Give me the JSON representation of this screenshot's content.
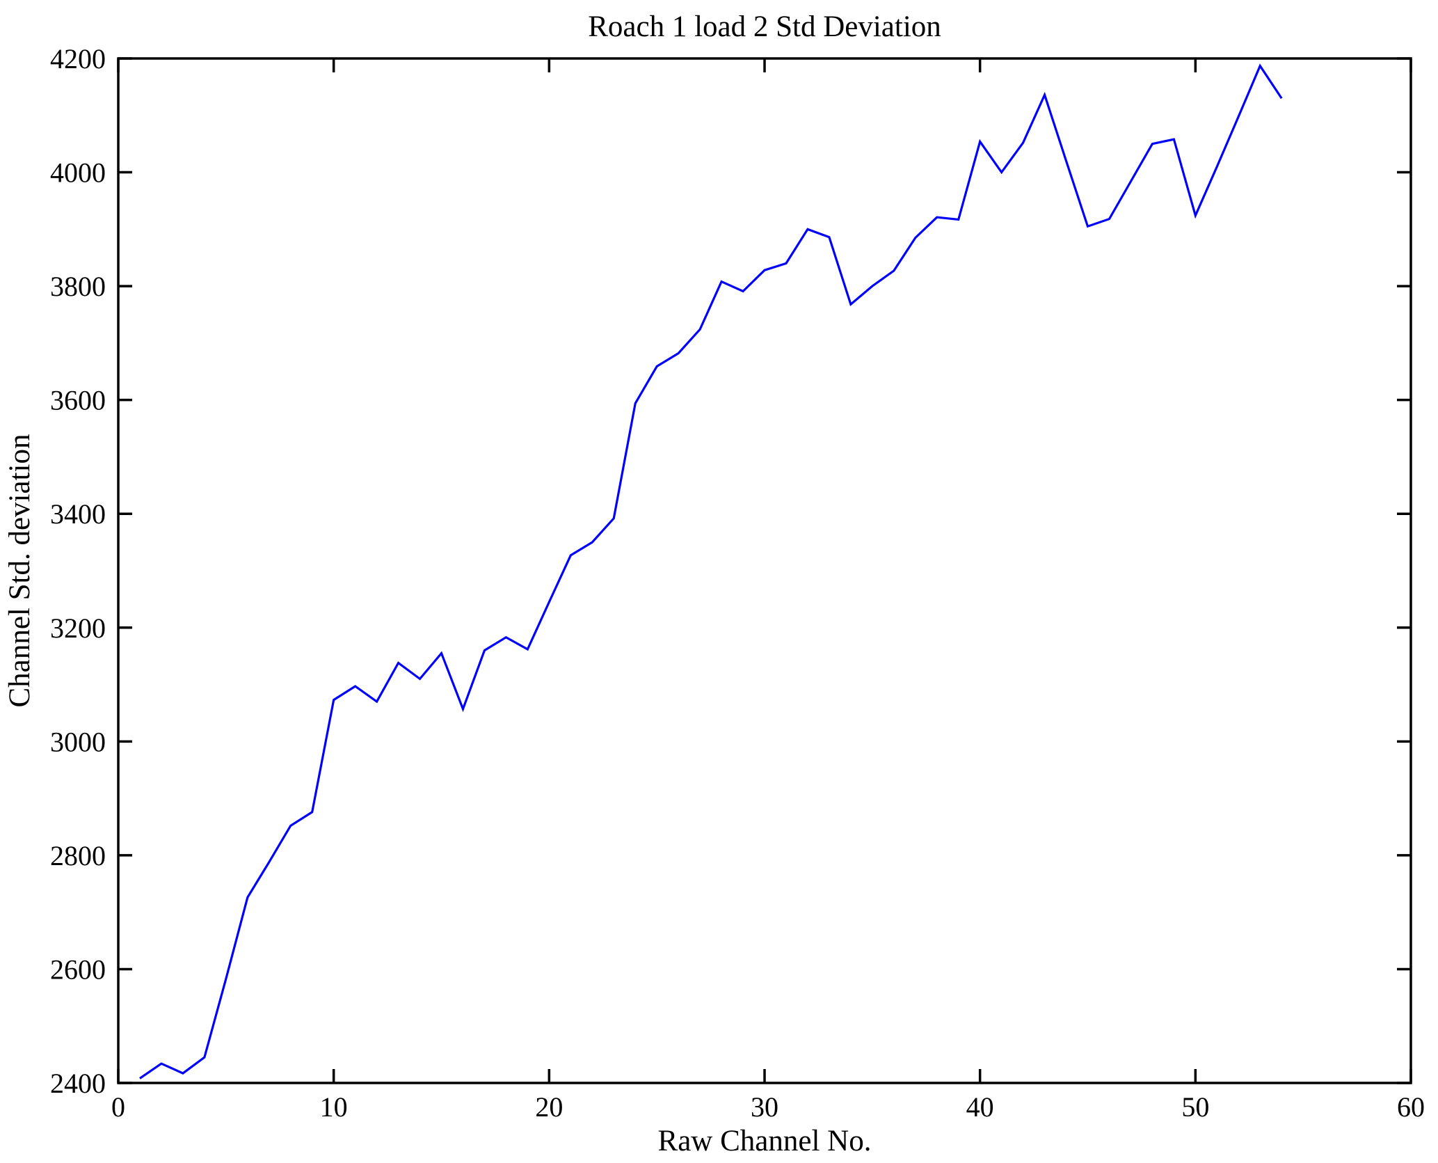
{
  "chart_data": {
    "type": "line",
    "title": "Roach 1 load 2 Std Deviation",
    "xlabel": "Raw Channel No.",
    "ylabel": "Channel Std. deviation",
    "xlim": [
      0,
      60
    ],
    "ylim": [
      2400,
      4200
    ],
    "x_ticks": [
      0,
      10,
      20,
      30,
      40,
      50,
      60
    ],
    "y_ticks": [
      2400,
      2600,
      2800,
      3000,
      3200,
      3400,
      3600,
      3800,
      4000,
      4200
    ],
    "grid": false,
    "legend_position": "none",
    "box": true,
    "tick_direction": "in",
    "line_color": "#0000ff",
    "axis_color": "#000000",
    "background_color": "#ffffff",
    "series": [
      {
        "name": "Channel Std. deviation vs Raw Channel No.",
        "x": [
          1,
          2,
          3,
          4,
          5,
          6,
          7,
          8,
          9,
          10,
          11,
          12,
          13,
          14,
          15,
          16,
          17,
          18,
          19,
          20,
          21,
          22,
          23,
          24,
          25,
          26,
          27,
          28,
          29,
          30,
          31,
          32,
          33,
          34,
          35,
          36,
          37,
          38,
          39,
          40,
          41,
          42,
          43,
          44,
          45,
          46,
          47,
          48,
          49,
          50,
          51,
          52,
          53,
          54
        ],
        "values": [
          2408,
          2434,
          2417,
          2445,
          2583,
          2726,
          2788,
          2852,
          2876,
          3073,
          3097,
          3070,
          3138,
          3110,
          3155,
          3057,
          3160,
          3183,
          3162,
          3245,
          3327,
          3350,
          3392,
          3594,
          3659,
          3682,
          3724,
          3808,
          3791,
          3828,
          3840,
          3900,
          3886,
          3768,
          3800,
          3827,
          3885,
          3921,
          3917,
          4054,
          4000,
          4052,
          4136,
          4020,
          3905,
          3918,
          3984,
          4050,
          4058,
          3924,
          4010,
          4098,
          4187,
          4130
        ]
      }
    ]
  }
}
